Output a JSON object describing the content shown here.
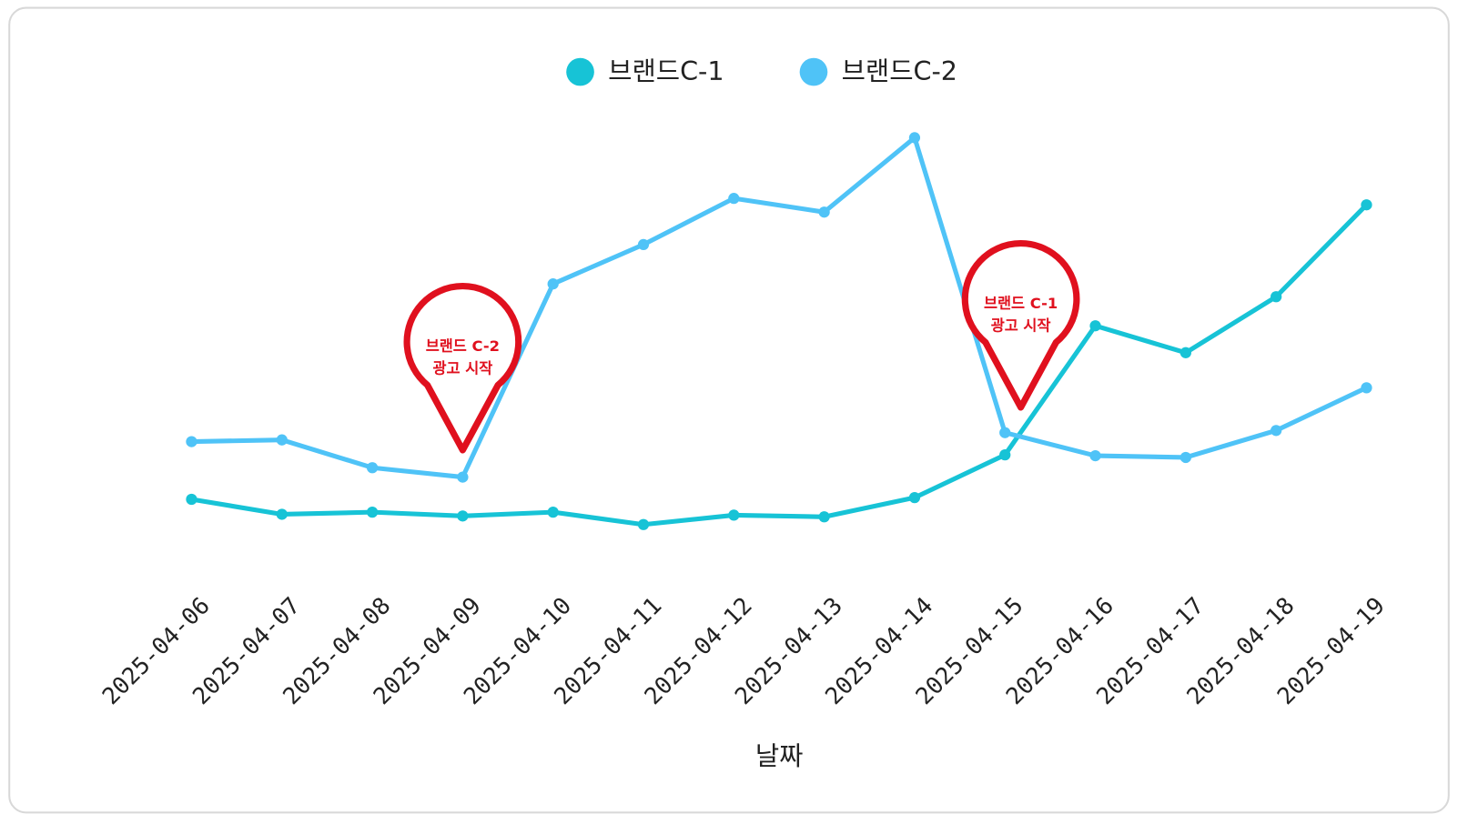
{
  "chart_data": {
    "type": "line",
    "xlabel": "날짜",
    "categories": [
      "2025-04-06",
      "2025-04-07",
      "2025-04-08",
      "2025-04-09",
      "2025-04-10",
      "2025-04-11",
      "2025-04-12",
      "2025-04-13",
      "2025-04-14",
      "2025-04-15",
      "2025-04-16",
      "2025-04-17",
      "2025-04-18",
      "2025-04-19"
    ],
    "series": [
      {
        "name": "브랜드C-1",
        "color": "#17c3d6",
        "values": [
          13.7,
          10.2,
          10.7,
          9.8,
          10.7,
          7.8,
          10,
          9.6,
          14.1,
          24.1,
          54.3,
          48,
          61.1,
          82.6
        ]
      },
      {
        "name": "브랜드C-2",
        "color": "#4fc3f7",
        "values": [
          27.2,
          27.6,
          21.1,
          18.9,
          64.1,
          73.3,
          84.1,
          80.9,
          98.3,
          29.3,
          23.9,
          23.5,
          29.8,
          39.8
        ]
      }
    ],
    "ylim": [
      0,
      100
    ],
    "legend": "top",
    "annotations": [
      {
        "x": "2025-04-09",
        "y": 25.2,
        "text": [
          "브랜드 C-2",
          "광고 시작"
        ],
        "color": "#e0101e"
      },
      {
        "x": "2025-04-15",
        "y": 35.2,
        "text": [
          "브랜드 C-1",
          "광고 시작"
        ],
        "color": "#e0101e"
      }
    ]
  }
}
